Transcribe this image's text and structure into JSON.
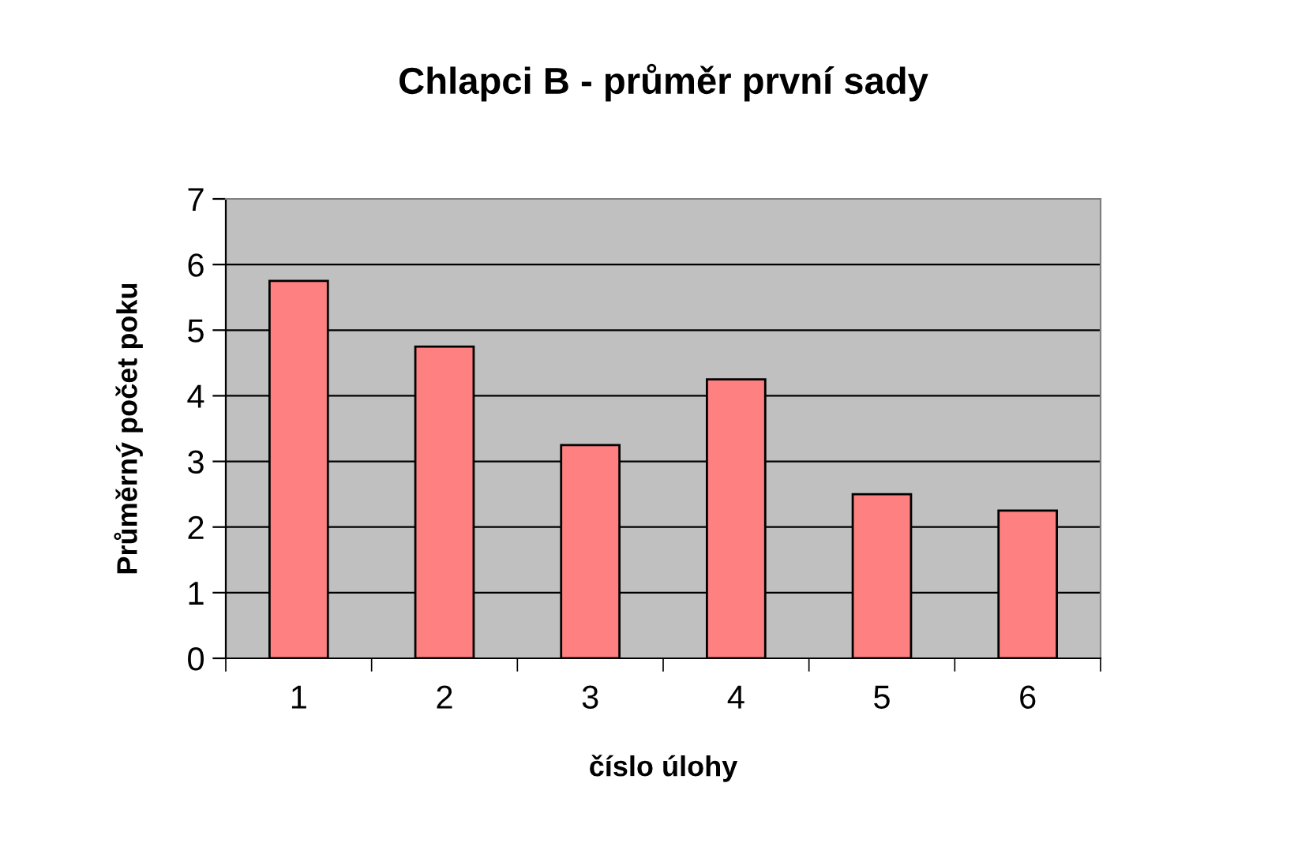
{
  "chart_data": {
    "type": "bar",
    "title": "Chlapci B - průměr první sady",
    "xlabel": "číslo úlohy",
    "ylabel": "Průměrný počet poku",
    "categories": [
      "1",
      "2",
      "3",
      "4",
      "5",
      "6"
    ],
    "values": [
      5.75,
      4.75,
      3.25,
      4.25,
      2.5,
      2.25
    ],
    "color": "#ff8080",
    "ylim": [
      0,
      7
    ],
    "yticks": [
      0,
      1,
      2,
      3,
      4,
      5,
      6,
      7
    ],
    "grid": "y",
    "legend": false
  }
}
